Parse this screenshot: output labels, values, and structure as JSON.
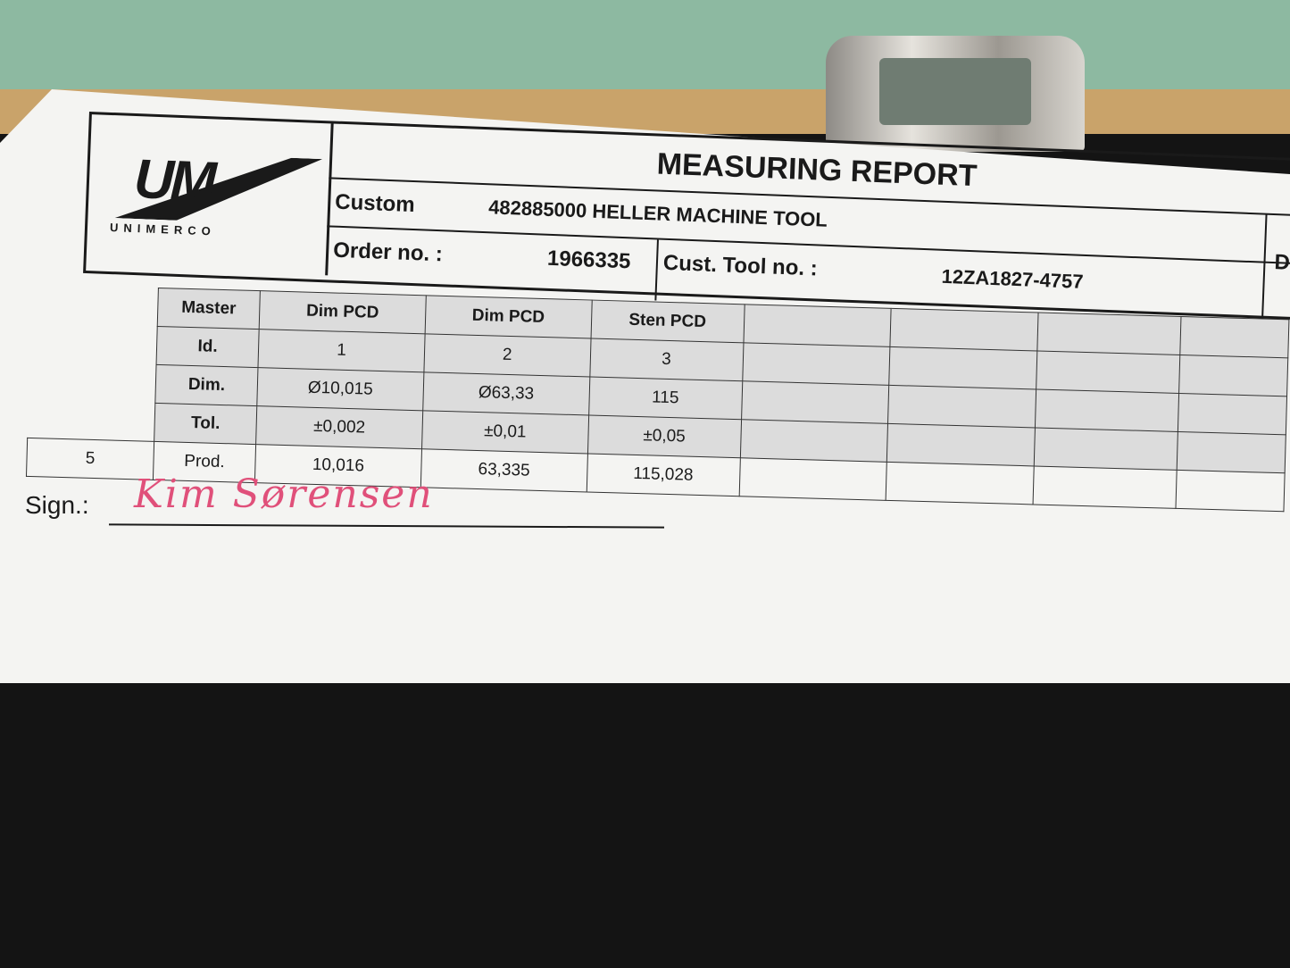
{
  "header": {
    "logo_mark": "UM",
    "logo_name": "UNIMERCO",
    "title": "MEASURING REPORT",
    "customer_label": "Custom",
    "customer_value": "482885000 HELLER MACHINE TOOL",
    "order_label": "Order no. :",
    "order_value": "1966335",
    "cust_tool_label": "Cust. Tool no. :",
    "cust_tool_value": "12ZA1827-4757",
    "right_edge_letter": "D"
  },
  "table": {
    "rows": [
      {
        "label": "Master",
        "cells": [
          "Dim PCD",
          "Dim PCD",
          "Sten PCD"
        ]
      },
      {
        "label": "Id.",
        "cells": [
          "1",
          "2",
          "3"
        ]
      },
      {
        "label": "Dim.",
        "cells": [
          "Ø10,015",
          "Ø63,33",
          "115"
        ]
      },
      {
        "label": "Tol.",
        "cells": [
          "±0,002",
          "±0,01",
          "±0,05"
        ]
      },
      {
        "count": "5",
        "label": "Prod.",
        "cells": [
          "10,016",
          "63,335",
          "115,028"
        ]
      }
    ]
  },
  "signature": {
    "label": "Sign.:",
    "handwritten": "Kim Sørensen"
  }
}
